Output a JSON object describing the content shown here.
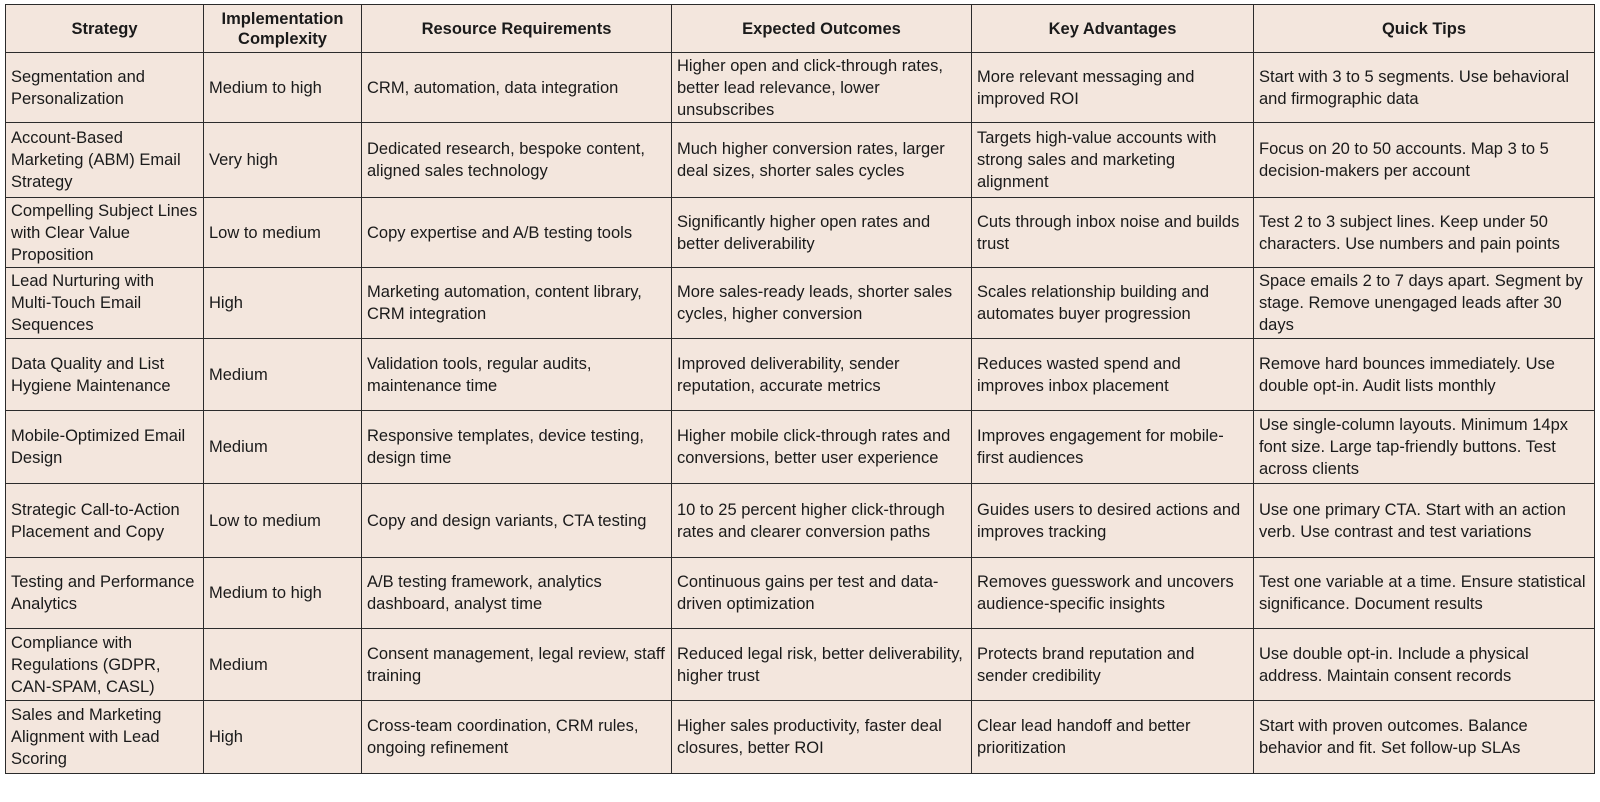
{
  "table": {
    "headers": [
      "Strategy",
      "Implementation Complexity",
      "Resource Requirements",
      "Expected Outcomes",
      "Key Advantages",
      "Quick Tips"
    ],
    "rows": [
      [
        "Segmentation and Personalization",
        "Medium to high",
        "CRM, automation, data integration",
        "Higher open and click-through rates, better lead relevance, lower unsubscribes",
        "More relevant messaging and improved ROI",
        "Start with 3 to 5 segments. Use behavioral and firmographic data"
      ],
      [
        "Account-Based Marketing (ABM) Email Strategy",
        "Very high",
        "Dedicated research, bespoke content, aligned sales technology",
        "Much higher conversion rates, larger deal sizes, shorter sales cycles",
        "Targets high-value accounts with strong sales and marketing alignment",
        "Focus on 20 to 50 accounts. Map 3 to 5 decision-makers per account"
      ],
      [
        "Compelling Subject Lines with Clear Value Proposition",
        "Low to medium",
        "Copy expertise and A/B testing tools",
        "Significantly higher open rates and better deliverability",
        "Cuts through inbox noise and builds trust",
        "Test 2 to 3 subject lines. Keep under 50 characters. Use numbers and pain points"
      ],
      [
        "Lead Nurturing with Multi-Touch Email Sequences",
        "High",
        "Marketing automation, content library, CRM integration",
        "More sales-ready leads, shorter sales cycles, higher conversion",
        "Scales relationship building and automates buyer progression",
        "Space emails 2 to 7 days apart. Segment by stage. Remove unengaged leads after 30 days"
      ],
      [
        "Data Quality and List Hygiene Maintenance",
        "Medium",
        "Validation tools, regular audits, maintenance time",
        "Improved deliverability, sender reputation, accurate metrics",
        "Reduces wasted spend and improves inbox placement",
        "Remove hard bounces immediately. Use double opt-in. Audit lists monthly"
      ],
      [
        "Mobile-Optimized Email Design",
        "Medium",
        "Responsive templates, device testing, design time",
        "Higher mobile click-through rates and conversions, better user experience",
        "Improves engagement for mobile-first audiences",
        "Use single-column layouts. Minimum 14px font size. Large tap-friendly buttons. Test across clients"
      ],
      [
        "Strategic Call-to-Action Placement and Copy",
        "Low to medium",
        "Copy and design variants, CTA testing",
        "10 to 25 percent higher click-through rates and clearer conversion paths",
        "Guides users to desired actions and improves tracking",
        "Use one primary CTA. Start with an action verb. Use contrast and test variations"
      ],
      [
        "Testing and Performance Analytics",
        "Medium to high",
        "A/B testing framework, analytics dashboard, analyst time",
        "Continuous gains per test and data-driven optimization",
        "Removes guesswork and uncovers audience-specific insights",
        "Test one variable at a time. Ensure statistical significance. Document results"
      ],
      [
        "Compliance with Regulations (GDPR, CAN-SPAM, CASL)",
        "Medium",
        "Consent management, legal review, staff training",
        "Reduced legal risk, better deliverability, higher trust",
        "Protects brand reputation and sender credibility",
        "Use double opt-in. Include a physical address. Maintain consent records"
      ],
      [
        "Sales and Marketing Alignment with Lead Scoring",
        "High",
        "Cross-team coordination, CRM rules, ongoing refinement",
        "Higher sales productivity, faster deal closures, better ROI",
        "Clear lead handoff and better prioritization",
        "Start with proven outcomes. Balance behavior and fit. Set follow-up SLAs"
      ]
    ]
  }
}
